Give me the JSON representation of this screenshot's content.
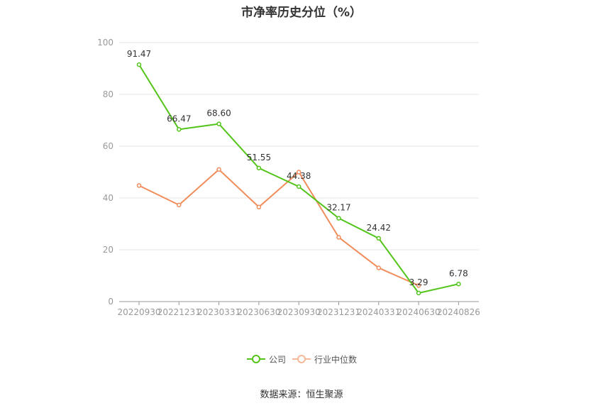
{
  "chart_data": {
    "type": "line",
    "title": "市净率历史分位（%）",
    "categories": [
      "20220930",
      "20221231",
      "20230331",
      "20230630",
      "20230930",
      "20231231",
      "20240331",
      "20240630",
      "20240826"
    ],
    "ylim": [
      0,
      100
    ],
    "yticks": [
      0,
      20,
      40,
      60,
      80,
      100
    ],
    "grid": true,
    "legend_position": "bottom",
    "series": [
      {
        "name": "公司",
        "color": "#52c41a",
        "values": [
          91.47,
          66.47,
          68.6,
          51.55,
          44.38,
          32.17,
          24.42,
          3.29,
          6.78
        ],
        "labels": [
          "91.47",
          "66.47",
          "68.60",
          "51.55",
          "44.38",
          "32.17",
          "24.42",
          "3.29",
          "6.78"
        ]
      },
      {
        "name": "行业中位数",
        "color": "#f08c5a",
        "values": [
          44.8,
          37.3,
          51.0,
          36.5,
          50.0,
          24.8,
          13.0,
          6.2,
          null
        ]
      }
    ]
  },
  "source": "数据来源：恒生聚源"
}
